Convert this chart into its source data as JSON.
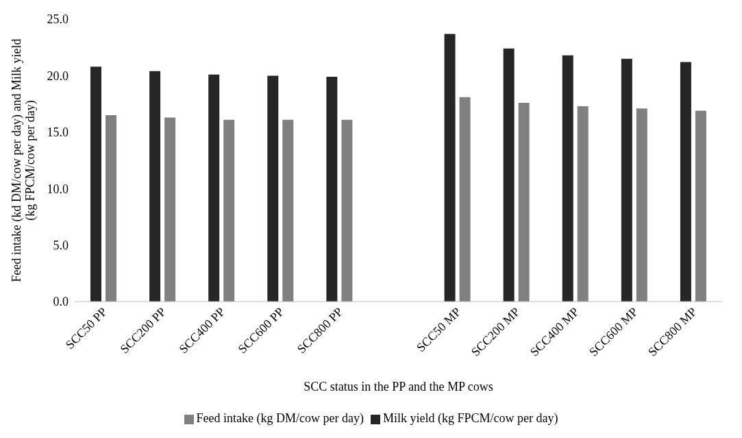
{
  "chart_data": {
    "type": "bar",
    "xlabel": "SCC status in the PP and the MP cows",
    "ylabel": "Feed intake (kd DM/cow per day) and Milk yield (kg FPCM/cow per day)",
    "categories": [
      "SCC50 PP",
      "SCC200 PP",
      "SCC400 PP",
      "SCC600 PP",
      "SCC800 PP",
      null,
      "SCC50 MP",
      "SCC200 MP",
      "SCC400 MP",
      "SCC600 MP",
      "SCC800 MP"
    ],
    "series": [
      {
        "name": "Milk yield (kg FPCM/cow per day)",
        "color": "#262626",
        "values": [
          20.8,
          20.4,
          20.1,
          20.0,
          19.9,
          null,
          23.7,
          22.4,
          21.8,
          21.5,
          21.2
        ]
      },
      {
        "name": "Feed intake (kg DM/cow per day)",
        "color": "#808080",
        "values": [
          16.5,
          16.3,
          16.1,
          16.1,
          16.1,
          null,
          18.1,
          17.6,
          17.3,
          17.1,
          16.9
        ]
      }
    ],
    "ylim": [
      0,
      25
    ],
    "yticks": [
      {
        "value": 0,
        "label": "0.0"
      },
      {
        "value": 5,
        "label": "5.0"
      },
      {
        "value": 10,
        "label": "10.0"
      },
      {
        "value": 15,
        "label": "15.0"
      },
      {
        "value": 20,
        "label": "20.0"
      },
      {
        "value": 25,
        "label": "25.0"
      }
    ],
    "grid": false,
    "legend": "bottom"
  }
}
